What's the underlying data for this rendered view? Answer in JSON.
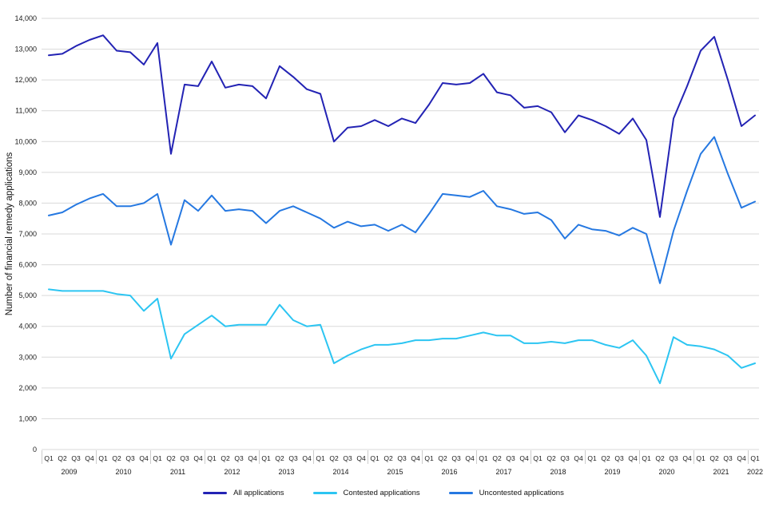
{
  "chart_data": {
    "type": "line",
    "title": "",
    "ylabel": "Number of financial remedy applications",
    "ylim": [
      0,
      14000
    ],
    "y_tick_step": 1000,
    "grid": "horizontal-gridlines-on",
    "legend_position": "bottom-center",
    "x": [
      "2009 Q1",
      "2009 Q2",
      "2009 Q3",
      "2009 Q4",
      "2010 Q1",
      "2010 Q2",
      "2010 Q3",
      "2010 Q4",
      "2011 Q1",
      "2011 Q2",
      "2011 Q3",
      "2011 Q4",
      "2012 Q1",
      "2012 Q2",
      "2012 Q3",
      "2012 Q4",
      "2013 Q1",
      "2013 Q2",
      "2013 Q3",
      "2013 Q4",
      "2014 Q1",
      "2014 Q2",
      "2014 Q3",
      "2014 Q4",
      "2015 Q1",
      "2015 Q2",
      "2015 Q3",
      "2015 Q4",
      "2016 Q1",
      "2016 Q2",
      "2016 Q3",
      "2016 Q4",
      "2017 Q1",
      "2017 Q2",
      "2017 Q3",
      "2017 Q4",
      "2018 Q1",
      "2018 Q2",
      "2018 Q3",
      "2018 Q4",
      "2019 Q1",
      "2019 Q2",
      "2019 Q3",
      "2019 Q4",
      "2020 Q1",
      "2020 Q2",
      "2020 Q3",
      "2020 Q4",
      "2021 Q1",
      "2021 Q2",
      "2021 Q3",
      "2021 Q4",
      "2022 Q1"
    ],
    "series": [
      {
        "name": "All applications",
        "color": "#2323b4",
        "values": [
          12800,
          12850,
          13100,
          13300,
          13450,
          12950,
          12900,
          12500,
          13200,
          9600,
          11850,
          11800,
          12600,
          11750,
          11850,
          11800,
          11400,
          12450,
          12100,
          11700,
          11550,
          10000,
          10450,
          10500,
          10700,
          10500,
          10750,
          10600,
          11200,
          11900,
          11850,
          11900,
          12200,
          11600,
          11500,
          11100,
          11150,
          10950,
          10300,
          10850,
          10700,
          10500,
          10250,
          10750,
          10050,
          7550,
          10750,
          11800,
          12950,
          13400,
          12000,
          10500,
          10850
        ]
      },
      {
        "name": "Contested applications",
        "color": "#2cc5f2",
        "values": [
          5200,
          5150,
          5150,
          5150,
          5150,
          5050,
          5000,
          4500,
          4900,
          2950,
          3750,
          4050,
          4350,
          4000,
          4050,
          4050,
          4050,
          4700,
          4200,
          4000,
          4050,
          2800,
          3050,
          3250,
          3400,
          3400,
          3450,
          3550,
          3550,
          3600,
          3600,
          3700,
          3800,
          3700,
          3700,
          3450,
          3450,
          3500,
          3450,
          3550,
          3550,
          3400,
          3300,
          3550,
          3050,
          2150,
          3650,
          3400,
          3350,
          3250,
          3050,
          2650,
          2800
        ]
      },
      {
        "name": "Uncontested applications",
        "color": "#2578e1",
        "values": [
          7600,
          7700,
          7950,
          8150,
          8300,
          7900,
          7900,
          8000,
          8300,
          6650,
          8100,
          7750,
          8250,
          7750,
          7800,
          7750,
          7350,
          7750,
          7900,
          7700,
          7500,
          7200,
          7400,
          7250,
          7300,
          7100,
          7300,
          7050,
          7650,
          8300,
          8250,
          8200,
          8400,
          7900,
          7800,
          7650,
          7700,
          7450,
          6850,
          7300,
          7150,
          7100,
          6950,
          7200,
          7000,
          5400,
          7100,
          8400,
          9600,
          10150,
          8950,
          7850,
          8050
        ]
      }
    ]
  },
  "y_axis": {
    "title": "Number of financial remedy applications",
    "tick_labels_top_down": [
      "14,000",
      "13,000",
      "12,000",
      "11,000",
      "10,000",
      "9,000",
      "8,000",
      "7,000",
      "6,000",
      "5,000",
      "4,000",
      "3,000",
      "2,000",
      "1,000",
      "0"
    ]
  },
  "x_axis": {
    "quarter_labels": [
      "Q1",
      "Q2",
      "Q3",
      "Q4",
      "Q1",
      "Q2",
      "Q3",
      "Q4",
      "Q1",
      "Q2",
      "Q3",
      "Q4",
      "Q1",
      "Q2",
      "Q3",
      "Q4",
      "Q1",
      "Q2",
      "Q3",
      "Q4",
      "Q1",
      "Q2",
      "Q3",
      "Q4",
      "Q1",
      "Q2",
      "Q3",
      "Q4",
      "Q1",
      "Q2",
      "Q3",
      "Q4",
      "Q1",
      "Q2",
      "Q3",
      "Q4",
      "Q1",
      "Q2",
      "Q3",
      "Q4",
      "Q1",
      "Q2",
      "Q3",
      "Q4",
      "Q1",
      "Q2",
      "Q3",
      "Q4",
      "Q1",
      "Q2",
      "Q3",
      "Q4",
      "Q1"
    ],
    "year_groups": [
      {
        "year": "2009",
        "count": 4
      },
      {
        "year": "2010",
        "count": 4
      },
      {
        "year": "2011",
        "count": 4
      },
      {
        "year": "2012",
        "count": 4
      },
      {
        "year": "2013",
        "count": 4
      },
      {
        "year": "2014",
        "count": 4
      },
      {
        "year": "2015",
        "count": 4
      },
      {
        "year": "2016",
        "count": 4
      },
      {
        "year": "2017",
        "count": 4
      },
      {
        "year": "2018",
        "count": 4
      },
      {
        "year": "2019",
        "count": 4
      },
      {
        "year": "2020",
        "count": 4
      },
      {
        "year": "2021",
        "count": 4
      },
      {
        "year": "2022",
        "count": 1
      }
    ]
  },
  "legend": [
    {
      "label": "All applications",
      "color": "#2323b4"
    },
    {
      "label": "Contested applications",
      "color": "#2cc5f2"
    },
    {
      "label": "Uncontested applications",
      "color": "#2578e1"
    }
  ],
  "colors": {
    "gridline": "#d9d9d9",
    "year_separator": "#cccccc",
    "tick_text": "#1a1a1a"
  }
}
